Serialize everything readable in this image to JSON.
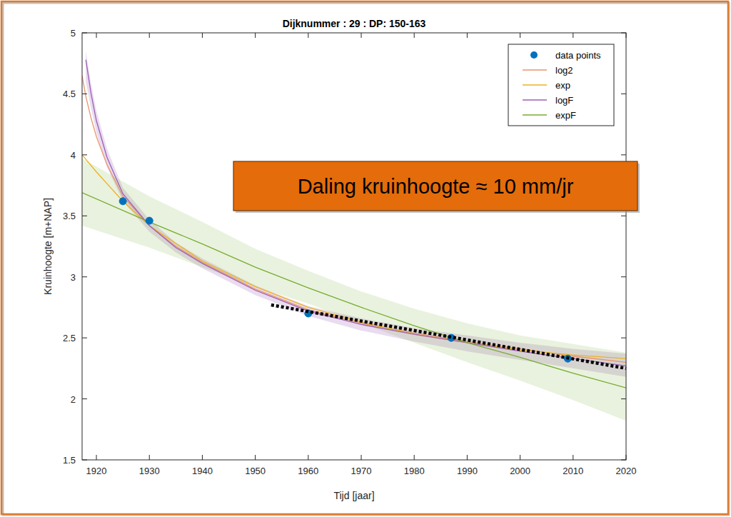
{
  "chart_data": {
    "type": "line",
    "title": "Dijknummer : 29 : DP: 150-163",
    "x_label": "Tijd [jaar]",
    "y_label": "Kruinhoogte [m+NAP]",
    "xlim": [
      1917.3,
      2020
    ],
    "xticks": [
      1920,
      1930,
      1940,
      1950,
      1960,
      1970,
      1980,
      1990,
      2000,
      2010,
      2020
    ],
    "ylim": [
      1.5,
      5
    ],
    "yticks": [
      1.5,
      2,
      2.5,
      3,
      3.5,
      4,
      4.5,
      5
    ],
    "grid": false,
    "legend": "top-right",
    "series": [
      {
        "name": "data points",
        "type": "scatter",
        "marker": "circle",
        "color": "#0072bd",
        "x": [
          1925,
          1930,
          1960,
          1987,
          2009
        ],
        "values": [
          3.62,
          3.46,
          2.7,
          2.5,
          2.33
        ]
      },
      {
        "name": "log2",
        "type": "line",
        "color": "#e8956a",
        "x": [
          1917.3,
          1918,
          1919,
          1920,
          1922,
          1925,
          1930,
          1935,
          1940,
          1950,
          1960,
          1970,
          1980,
          1990,
          2000,
          2010,
          2020
        ],
        "values": [
          4.65,
          4.48,
          4.3,
          4.15,
          3.92,
          3.66,
          3.42,
          3.25,
          3.12,
          2.9,
          2.73,
          2.62,
          2.54,
          2.47,
          2.41,
          2.35,
          2.3
        ]
      },
      {
        "name": "exp",
        "type": "line",
        "color": "#edb120",
        "x": [
          1917.3,
          1920,
          1925,
          1930,
          1940,
          1950,
          1960,
          1970,
          1980,
          1990,
          2000,
          2010,
          2020
        ],
        "values": [
          4.0,
          3.86,
          3.62,
          3.42,
          3.13,
          2.92,
          2.75,
          2.63,
          2.53,
          2.46,
          2.4,
          2.36,
          2.33
        ]
      },
      {
        "name": "logF",
        "type": "line",
        "color": "#9c5fb5",
        "x": [
          1918,
          1919,
          1920,
          1922,
          1925,
          1930,
          1935,
          1940,
          1950,
          1960,
          1970,
          1980,
          1990,
          2000,
          2010,
          2020
        ],
        "values": [
          4.78,
          4.5,
          4.28,
          3.98,
          3.68,
          3.42,
          3.24,
          3.11,
          2.89,
          2.72,
          2.61,
          2.53,
          2.46,
          2.39,
          2.33,
          2.27
        ],
        "upper": [
          4.85,
          4.58,
          4.36,
          4.05,
          3.73,
          3.47,
          3.28,
          3.15,
          2.93,
          2.76,
          2.66,
          2.58,
          2.52,
          2.46,
          2.41,
          2.37
        ],
        "lower": [
          4.6,
          4.38,
          4.18,
          3.9,
          3.62,
          3.37,
          3.2,
          3.07,
          2.85,
          2.68,
          2.56,
          2.47,
          2.39,
          2.32,
          2.25,
          2.18
        ]
      },
      {
        "name": "expF",
        "type": "line",
        "color": "#77ac30",
        "x": [
          1917.3,
          1930,
          1940,
          1950,
          1960,
          1970,
          1980,
          1990,
          2000,
          2010,
          2020
        ],
        "values": [
          3.69,
          3.45,
          3.27,
          3.08,
          2.91,
          2.75,
          2.6,
          2.46,
          2.34,
          2.21,
          2.09
        ],
        "upper": [
          3.97,
          3.66,
          3.45,
          3.23,
          3.05,
          2.88,
          2.74,
          2.62,
          2.52,
          2.45,
          2.38
        ],
        "lower": [
          3.42,
          3.24,
          3.08,
          2.92,
          2.78,
          2.62,
          2.46,
          2.3,
          2.15,
          1.99,
          1.82
        ]
      }
    ],
    "trend": {
      "x": [
        1953,
        2020
      ],
      "values": [
        2.77,
        2.25
      ],
      "color": "#000000",
      "line_style": "dotted"
    },
    "annotations": [
      {
        "text": "Daling kruinhoogte ≈ 10 mm/jr",
        "color": "#e46c0a"
      }
    ]
  }
}
